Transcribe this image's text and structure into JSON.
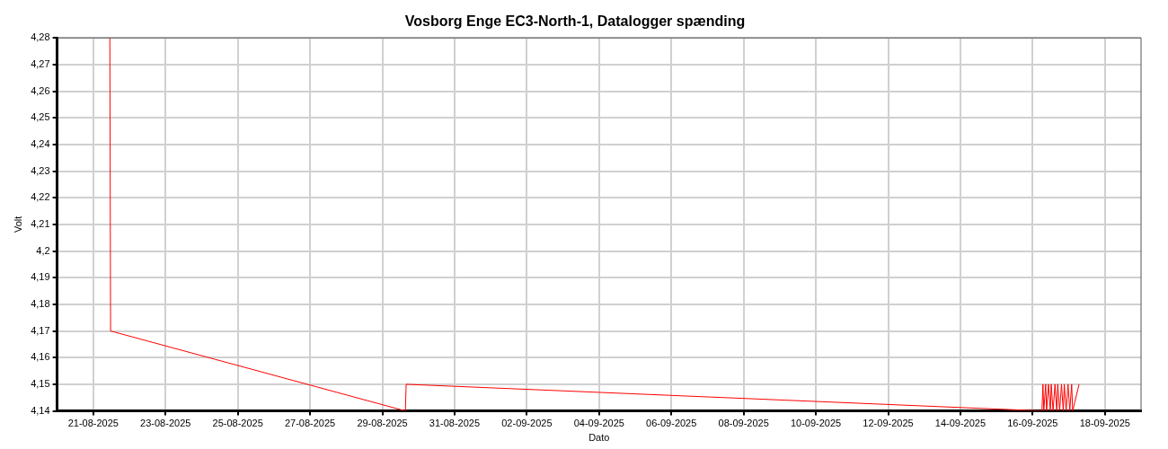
{
  "chart_data": {
    "type": "line",
    "title": "Vosborg Enge EC3-North-1, Datalogger spænding",
    "xlabel": "Dato",
    "ylabel": "Volt",
    "x": [
      "2025-08-21T11:00",
      "2025-08-21T11:30",
      "2025-08-29T15:20",
      "2025-08-29T15:50",
      "2025-09-16T06:10",
      "2025-09-16T06:50",
      "2025-09-16T07:25",
      "2025-09-16T08:40",
      "2025-09-16T09:15",
      "2025-09-16T10:30",
      "2025-09-16T11:45",
      "2025-09-16T12:20",
      "2025-09-16T13:35",
      "2025-09-16T14:50",
      "2025-09-16T16:00",
      "2025-09-16T16:40",
      "2025-09-16T17:55",
      "2025-09-16T19:10",
      "2025-09-16T20:20",
      "2025-09-16T21:00",
      "2025-09-16T22:15",
      "2025-09-16T23:30",
      "2025-09-17T00:40",
      "2025-09-17T01:55",
      "2025-09-17T02:35",
      "2025-09-17T06:50"
    ],
    "series": [
      {
        "color": "#ff0000",
        "values": [
          4.28,
          4.17,
          4.14,
          4.15,
          4.14,
          4.15,
          4.14,
          4.15,
          4.14,
          4.15,
          4.14,
          4.15,
          4.14,
          4.15,
          4.14,
          4.15,
          4.14,
          4.15,
          4.14,
          4.15,
          4.14,
          4.15,
          4.14,
          4.15,
          4.14,
          4.15
        ]
      }
    ],
    "xlim": [
      "2025-08-20",
      "2025-09-19"
    ],
    "xticks": [
      {
        "value": "2025-08-21",
        "label": "21-08-2025"
      },
      {
        "value": "2025-08-23",
        "label": "23-08-2025"
      },
      {
        "value": "2025-08-25",
        "label": "25-08-2025"
      },
      {
        "value": "2025-08-27",
        "label": "27-08-2025"
      },
      {
        "value": "2025-08-29",
        "label": "29-08-2025"
      },
      {
        "value": "2025-08-31",
        "label": "31-08-2025"
      },
      {
        "value": "2025-09-02",
        "label": "02-09-2025"
      },
      {
        "value": "2025-09-04",
        "label": "04-09-2025"
      },
      {
        "value": "2025-09-06",
        "label": "06-09-2025"
      },
      {
        "value": "2025-09-08",
        "label": "08-09-2025"
      },
      {
        "value": "2025-09-10",
        "label": "10-09-2025"
      },
      {
        "value": "2025-09-12",
        "label": "12-09-2025"
      },
      {
        "value": "2025-09-14",
        "label": "14-09-2025"
      },
      {
        "value": "2025-09-16",
        "label": "16-09-2025"
      },
      {
        "value": "2025-09-18",
        "label": "18-09-2025"
      }
    ],
    "ylim": [
      4.14,
      4.28
    ],
    "yticks": [
      {
        "value": 4.14,
        "label": "4,14"
      },
      {
        "value": 4.15,
        "label": "4,15"
      },
      {
        "value": 4.16,
        "label": "4,16"
      },
      {
        "value": 4.17,
        "label": "4,17"
      },
      {
        "value": 4.18,
        "label": "4,18"
      },
      {
        "value": 4.19,
        "label": "4,19"
      },
      {
        "value": 4.2,
        "label": "4,2"
      },
      {
        "value": 4.21,
        "label": "4,21"
      },
      {
        "value": 4.22,
        "label": "4,22"
      },
      {
        "value": 4.23,
        "label": "4,23"
      },
      {
        "value": 4.24,
        "label": "4,24"
      },
      {
        "value": 4.25,
        "label": "4,25"
      },
      {
        "value": 4.26,
        "label": "4,26"
      },
      {
        "value": 4.27,
        "label": "4,27"
      },
      {
        "value": 4.28,
        "label": "4,28"
      }
    ],
    "grid": true,
    "legend": false,
    "marker": "none",
    "line_style": "solid"
  }
}
